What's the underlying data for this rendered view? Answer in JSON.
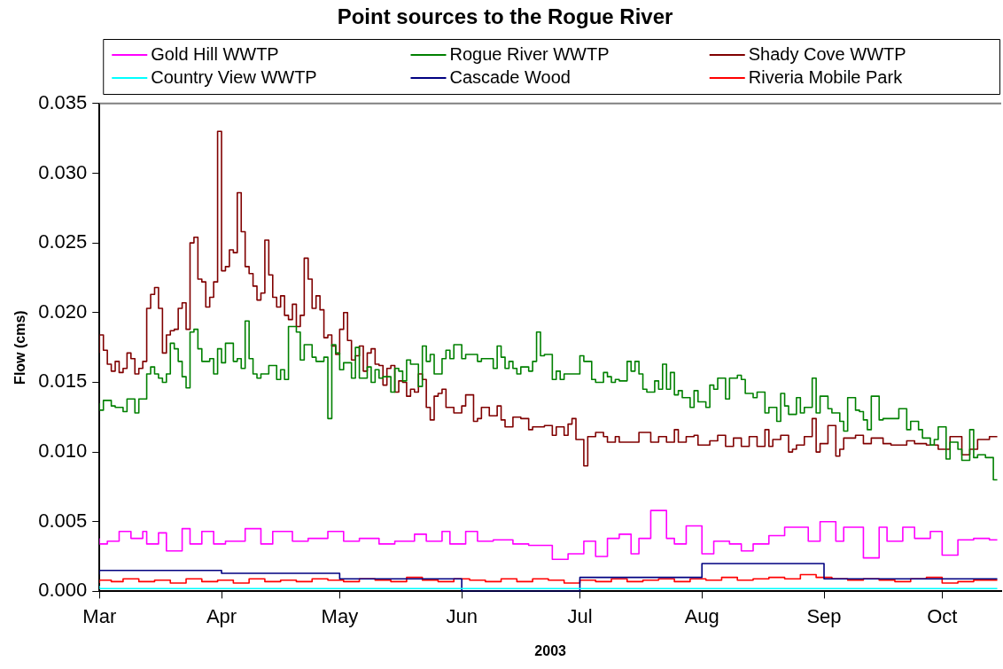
{
  "chart_data": {
    "type": "step",
    "title": "Point sources to the Rogue River",
    "xlabel": "2003",
    "ylabel": "Flow (cms)",
    "xlim": [
      "2003-03-01",
      "2003-10-16"
    ],
    "xticks": [
      {
        "value": "2003-03-01",
        "label": "Mar"
      },
      {
        "value": "2003-04-01",
        "label": "Apr"
      },
      {
        "value": "2003-05-01",
        "label": "May"
      },
      {
        "value": "2003-06-01",
        "label": "Jun"
      },
      {
        "value": "2003-07-01",
        "label": "Jul"
      },
      {
        "value": "2003-08-01",
        "label": "Aug"
      },
      {
        "value": "2003-09-01",
        "label": "Sep"
      },
      {
        "value": "2003-10-01",
        "label": "Oct"
      }
    ],
    "ylim": [
      0,
      0.035
    ],
    "yticks": [
      {
        "value": 0,
        "label": "0.000"
      },
      {
        "value": 0.005,
        "label": "0.005"
      },
      {
        "value": 0.01,
        "label": "0.010"
      },
      {
        "value": 0.015,
        "label": "0.015"
      },
      {
        "value": 0.02,
        "label": "0.020"
      },
      {
        "value": 0.025,
        "label": "0.025"
      },
      {
        "value": 0.03,
        "label": "0.030"
      },
      {
        "value": 0.035,
        "label": "0.035"
      }
    ],
    "grid": false,
    "legend": "top",
    "marker": "none",
    "line_style": "solid",
    "series": [
      {
        "name": "Gold Hill WWTP",
        "color": "#ff00ff",
        "x": [
          "2003-03-01",
          "2003-03-03",
          "2003-03-06",
          "2003-03-09",
          "2003-03-12",
          "2003-03-13",
          "2003-03-16",
          "2003-03-18",
          "2003-03-22",
          "2003-03-24",
          "2003-03-27",
          "2003-03-30",
          "2003-04-02",
          "2003-04-07",
          "2003-04-11",
          "2003-04-14",
          "2003-04-19",
          "2003-04-23",
          "2003-04-28",
          "2003-05-02",
          "2003-05-06",
          "2003-05-11",
          "2003-05-15",
          "2003-05-20",
          "2003-05-23",
          "2003-05-27",
          "2003-05-29",
          "2003-06-02",
          "2003-06-05",
          "2003-06-09",
          "2003-06-14",
          "2003-06-18",
          "2003-06-24",
          "2003-06-28",
          "2003-07-02",
          "2003-07-05",
          "2003-07-08",
          "2003-07-11",
          "2003-07-14",
          "2003-07-16",
          "2003-07-19",
          "2003-07-23",
          "2003-07-25",
          "2003-07-28",
          "2003-08-01",
          "2003-08-04",
          "2003-08-08",
          "2003-08-11",
          "2003-08-14",
          "2003-08-18",
          "2003-08-22",
          "2003-08-28",
          "2003-08-31",
          "2003-09-04",
          "2003-09-06",
          "2003-09-11",
          "2003-09-15",
          "2003-09-17",
          "2003-09-21",
          "2003-09-24",
          "2003-09-28",
          "2003-10-01",
          "2003-10-05",
          "2003-10-09",
          "2003-10-13",
          "2003-10-15"
        ],
        "values": [
          0.0038,
          0.0034,
          0.0036,
          0.0043,
          0.0038,
          0.0043,
          0.0034,
          0.0042,
          0.0029,
          0.0045,
          0.0034,
          0.0043,
          0.0034,
          0.0036,
          0.0045,
          0.0034,
          0.0043,
          0.0036,
          0.0038,
          0.0043,
          0.0036,
          0.0038,
          0.0034,
          0.0036,
          0.0041,
          0.0036,
          0.0043,
          0.0034,
          0.0043,
          0.0036,
          0.0037,
          0.0034,
          0.0033,
          0.0023,
          0.0027,
          0.0036,
          0.0025,
          0.0038,
          0.0041,
          0.0027,
          0.0038,
          0.0058,
          0.0038,
          0.0034,
          0.0047,
          0.0027,
          0.0036,
          0.0034,
          0.0029,
          0.0034,
          0.004,
          0.0046,
          0.0036,
          0.005,
          0.0036,
          0.0046,
          0.0024,
          0.0046,
          0.0036,
          0.0046,
          0.0038,
          0.0043,
          0.0026,
          0.0037,
          0.0038,
          0.0037
        ]
      },
      {
        "name": "Rogue River WWTP",
        "color": "#008000",
        "x": [
          "2003-03-01",
          "2003-03-02",
          "2003-03-04",
          "2003-03-05",
          "2003-03-07",
          "2003-03-08",
          "2003-03-10",
          "2003-03-11",
          "2003-03-13",
          "2003-03-14",
          "2003-03-15",
          "2003-03-16",
          "2003-03-17",
          "2003-03-18",
          "2003-03-19",
          "2003-03-20",
          "2003-03-21",
          "2003-03-22",
          "2003-03-23",
          "2003-03-24",
          "2003-03-25",
          "2003-03-26",
          "2003-03-27",
          "2003-03-29",
          "2003-03-30",
          "2003-03-31",
          "2003-04-01",
          "2003-04-02",
          "2003-04-04",
          "2003-04-05",
          "2003-04-06",
          "2003-04-07",
          "2003-04-08",
          "2003-04-09",
          "2003-04-10",
          "2003-04-11",
          "2003-04-13",
          "2003-04-15",
          "2003-04-16",
          "2003-04-17",
          "2003-04-18",
          "2003-04-20",
          "2003-04-21",
          "2003-04-22",
          "2003-04-24",
          "2003-04-25",
          "2003-04-27",
          "2003-04-28",
          "2003-04-29",
          "2003-04-30",
          "2003-05-01",
          "2003-05-02",
          "2003-05-04",
          "2003-05-05",
          "2003-05-06",
          "2003-05-08",
          "2003-05-09",
          "2003-05-10",
          "2003-05-11",
          "2003-05-12",
          "2003-05-14",
          "2003-05-15",
          "2003-05-16",
          "2003-05-17",
          "2003-05-18",
          "2003-05-19",
          "2003-05-21",
          "2003-05-22",
          "2003-05-23",
          "2003-05-24",
          "2003-05-25",
          "2003-05-27",
          "2003-05-28",
          "2003-05-29",
          "2003-05-30",
          "2003-06-01",
          "2003-06-02",
          "2003-06-05",
          "2003-06-06",
          "2003-06-09",
          "2003-06-10",
          "2003-06-11",
          "2003-06-12",
          "2003-06-13",
          "2003-06-14",
          "2003-06-15",
          "2003-06-16",
          "2003-06-18",
          "2003-06-19",
          "2003-06-20",
          "2003-06-21",
          "2003-06-22",
          "2003-06-24",
          "2003-06-25",
          "2003-06-26",
          "2003-06-27",
          "2003-07-01",
          "2003-07-02",
          "2003-07-04",
          "2003-07-05",
          "2003-07-07",
          "2003-07-08",
          "2003-07-09",
          "2003-07-10",
          "2003-07-11",
          "2003-07-13",
          "2003-07-14",
          "2003-07-15",
          "2003-07-16",
          "2003-07-17",
          "2003-07-18",
          "2003-07-20",
          "2003-07-21",
          "2003-07-22",
          "2003-07-23",
          "2003-07-24",
          "2003-07-25",
          "2003-07-26",
          "2003-07-27",
          "2003-07-29",
          "2003-07-30",
          "2003-07-31",
          "2003-08-02",
          "2003-08-03",
          "2003-08-04",
          "2003-08-05",
          "2003-08-07",
          "2003-08-08",
          "2003-08-10",
          "2003-08-11",
          "2003-08-12",
          "2003-08-14",
          "2003-08-15",
          "2003-08-17",
          "2003-08-18",
          "2003-08-20",
          "2003-08-21",
          "2003-08-22",
          "2003-08-23",
          "2003-08-25",
          "2003-08-26",
          "2003-08-27",
          "2003-08-29",
          "2003-08-30",
          "2003-08-31",
          "2003-09-02",
          "2003-09-03",
          "2003-09-05",
          "2003-09-06",
          "2003-09-07",
          "2003-09-09",
          "2003-09-10",
          "2003-09-11",
          "2003-09-12",
          "2003-09-13",
          "2003-09-15",
          "2003-09-16",
          "2003-09-18",
          "2003-09-20",
          "2003-09-22",
          "2003-09-23",
          "2003-09-25",
          "2003-09-26",
          "2003-09-28",
          "2003-09-29",
          "2003-09-30",
          "2003-10-02",
          "2003-10-03",
          "2003-10-05",
          "2003-10-06",
          "2003-10-08",
          "2003-10-09",
          "2003-10-10",
          "2003-10-12",
          "2003-10-14",
          "2003-10-15"
        ],
        "values": [
          0.0135,
          0.013,
          0.0137,
          0.0133,
          0.0132,
          0.0129,
          0.0138,
          0.0128,
          0.0138,
          0.0156,
          0.0161,
          0.0156,
          0.0153,
          0.015,
          0.0156,
          0.0178,
          0.0174,
          0.0165,
          0.0154,
          0.0146,
          0.0186,
          0.0188,
          0.0174,
          0.0165,
          0.0167,
          0.0156,
          0.0174,
          0.0164,
          0.0178,
          0.0165,
          0.0167,
          0.016,
          0.0194,
          0.0167,
          0.0156,
          0.0153,
          0.0156,
          0.0162,
          0.0152,
          0.0159,
          0.0152,
          0.019,
          0.0186,
          0.0166,
          0.0177,
          0.0168,
          0.0165,
          0.0168,
          0.0124,
          0.0177,
          0.0171,
          0.0159,
          0.0164,
          0.0153,
          0.0175,
          0.0153,
          0.0161,
          0.015,
          0.0159,
          0.0153,
          0.0154,
          0.0143,
          0.016,
          0.0158,
          0.0151,
          0.0166,
          0.0163,
          0.0147,
          0.0176,
          0.0165,
          0.017,
          0.0156,
          0.0167,
          0.0173,
          0.0167,
          0.0177,
          0.0167,
          0.017,
          0.0165,
          0.0167,
          0.016,
          0.0176,
          0.0168,
          0.016,
          0.0165,
          0.016,
          0.0156,
          0.0161,
          0.0158,
          0.0165,
          0.0186,
          0.0169,
          0.017,
          0.0152,
          0.0158,
          0.0152,
          0.0156,
          0.0169,
          0.0165,
          0.0152,
          0.015,
          0.0157,
          0.0154,
          0.015,
          0.0152,
          0.0151,
          0.0165,
          0.0158,
          0.0165,
          0.0156,
          0.0145,
          0.0143,
          0.0151,
          0.0145,
          0.0163,
          0.0145,
          0.0157,
          0.0141,
          0.0144,
          0.0139,
          0.0132,
          0.0144,
          0.0136,
          0.0132,
          0.0148,
          0.0145,
          0.0153,
          0.0138,
          0.0153,
          0.0155,
          0.0152,
          0.0142,
          0.0139,
          0.0143,
          0.0128,
          0.0132,
          0.0122,
          0.0142,
          0.0133,
          0.0127,
          0.0139,
          0.0128,
          0.0132,
          0.0153,
          0.0128,
          0.014,
          0.0131,
          0.0128,
          0.0122,
          0.0115,
          0.0139,
          0.013,
          0.0129,
          0.0123,
          0.0116,
          0.014,
          0.0123,
          0.0124,
          0.0124,
          0.0131,
          0.0116,
          0.0122,
          0.0116,
          0.011,
          0.0105,
          0.0109,
          0.0118,
          0.0095,
          0.0107,
          0.0102,
          0.0094,
          0.0116,
          0.0096,
          0.0098,
          0.0096,
          0.008
        ]
      },
      {
        "name": "Shady Cove WWTP",
        "color": "#800000",
        "x": [
          "2003-03-01",
          "2003-03-02",
          "2003-03-03",
          "2003-03-04",
          "2003-03-05",
          "2003-03-06",
          "2003-03-07",
          "2003-03-08",
          "2003-03-09",
          "2003-03-10",
          "2003-03-11",
          "2003-03-12",
          "2003-03-13",
          "2003-03-14",
          "2003-03-15",
          "2003-03-16",
          "2003-03-17",
          "2003-03-18",
          "2003-03-19",
          "2003-03-20",
          "2003-03-21",
          "2003-03-22",
          "2003-03-23",
          "2003-03-24",
          "2003-03-25",
          "2003-03-26",
          "2003-03-27",
          "2003-03-28",
          "2003-03-29",
          "2003-03-30",
          "2003-03-31",
          "2003-04-01",
          "2003-04-02",
          "2003-04-03",
          "2003-04-04",
          "2003-04-05",
          "2003-04-06",
          "2003-04-07",
          "2003-04-08",
          "2003-04-09",
          "2003-04-10",
          "2003-04-11",
          "2003-04-12",
          "2003-04-13",
          "2003-04-14",
          "2003-04-15",
          "2003-04-16",
          "2003-04-17",
          "2003-04-18",
          "2003-04-19",
          "2003-04-20",
          "2003-04-21",
          "2003-04-22",
          "2003-04-23",
          "2003-04-24",
          "2003-04-25",
          "2003-04-26",
          "2003-04-27",
          "2003-04-28",
          "2003-04-29",
          "2003-04-30",
          "2003-05-01",
          "2003-05-02",
          "2003-05-03",
          "2003-05-04",
          "2003-05-05",
          "2003-05-06",
          "2003-05-07",
          "2003-05-08",
          "2003-05-09",
          "2003-05-10",
          "2003-05-11",
          "2003-05-12",
          "2003-05-13",
          "2003-05-14",
          "2003-05-15",
          "2003-05-16",
          "2003-05-17",
          "2003-05-18",
          "2003-05-19",
          "2003-05-20",
          "2003-05-21",
          "2003-05-22",
          "2003-05-23",
          "2003-05-24",
          "2003-05-25",
          "2003-05-26",
          "2003-05-27",
          "2003-05-28",
          "2003-05-30",
          "2003-06-01",
          "2003-06-02",
          "2003-06-04",
          "2003-06-05",
          "2003-06-06",
          "2003-06-08",
          "2003-06-10",
          "2003-06-11",
          "2003-06-12",
          "2003-06-14",
          "2003-06-16",
          "2003-06-18",
          "2003-06-19",
          "2003-06-22",
          "2003-06-24",
          "2003-06-25",
          "2003-06-27",
          "2003-06-28",
          "2003-06-29",
          "2003-06-30",
          "2003-07-02",
          "2003-07-03",
          "2003-07-05",
          "2003-07-07",
          "2003-07-08",
          "2003-07-10",
          "2003-07-11",
          "2003-07-14",
          "2003-07-16",
          "2003-07-19",
          "2003-07-21",
          "2003-07-23",
          "2003-07-25",
          "2003-07-26",
          "2003-07-28",
          "2003-07-30",
          "2003-07-31",
          "2003-08-03",
          "2003-08-05",
          "2003-08-07",
          "2003-08-09",
          "2003-08-11",
          "2003-08-13",
          "2003-08-15",
          "2003-08-17",
          "2003-08-18",
          "2003-08-19",
          "2003-08-21",
          "2003-08-23",
          "2003-08-24",
          "2003-08-25",
          "2003-08-27",
          "2003-08-29",
          "2003-08-30",
          "2003-08-31",
          "2003-09-02",
          "2003-09-04",
          "2003-09-05",
          "2003-09-06",
          "2003-09-09",
          "2003-09-11",
          "2003-09-13",
          "2003-09-16",
          "2003-09-18",
          "2003-09-22",
          "2003-09-24",
          "2003-09-27",
          "2003-09-30",
          "2003-10-03",
          "2003-10-06",
          "2003-10-08",
          "2003-10-10",
          "2003-10-13",
          "2003-10-15"
        ],
        "values": [
          0.0171,
          0.0184,
          0.0173,
          0.0163,
          0.0158,
          0.0165,
          0.0157,
          0.016,
          0.0171,
          0.0167,
          0.0156,
          0.016,
          0.0165,
          0.0203,
          0.0213,
          0.0218,
          0.0203,
          0.0171,
          0.0184,
          0.0187,
          0.0188,
          0.0203,
          0.0207,
          0.0188,
          0.025,
          0.0254,
          0.0224,
          0.0222,
          0.0204,
          0.0211,
          0.0222,
          0.033,
          0.023,
          0.0233,
          0.0245,
          0.0243,
          0.0286,
          0.0258,
          0.0233,
          0.0228,
          0.0219,
          0.0209,
          0.0214,
          0.0252,
          0.0227,
          0.0211,
          0.0204,
          0.0212,
          0.0198,
          0.0195,
          0.0206,
          0.019,
          0.0198,
          0.0239,
          0.0224,
          0.0203,
          0.0212,
          0.0202,
          0.0182,
          0.0184,
          0.0176,
          0.017,
          0.0188,
          0.02,
          0.018,
          0.0166,
          0.0169,
          0.0176,
          0.0158,
          0.0171,
          0.0174,
          0.0163,
          0.0162,
          0.0148,
          0.016,
          0.0162,
          0.0143,
          0.0151,
          0.015,
          0.014,
          0.0145,
          0.0143,
          0.0156,
          0.0152,
          0.0132,
          0.0123,
          0.014,
          0.0142,
          0.0145,
          0.0132,
          0.0128,
          0.0133,
          0.0141,
          0.0122,
          0.0124,
          0.0132,
          0.0126,
          0.0133,
          0.0123,
          0.0118,
          0.0125,
          0.0124,
          0.0116,
          0.0118,
          0.0119,
          0.0112,
          0.0118,
          0.0112,
          0.012,
          0.0124,
          0.0109,
          0.009,
          0.0111,
          0.0114,
          0.0111,
          0.0107,
          0.0111,
          0.0107,
          0.0107,
          0.0114,
          0.0107,
          0.0111,
          0.0107,
          0.0116,
          0.0107,
          0.0111,
          0.0112,
          0.0105,
          0.0108,
          0.0112,
          0.0104,
          0.011,
          0.0104,
          0.0111,
          0.0104,
          0.0116,
          0.0104,
          0.0109,
          0.0112,
          0.01,
          0.0102,
          0.0105,
          0.0111,
          0.0124,
          0.01,
          0.0106,
          0.0119,
          0.0097,
          0.0102,
          0.011,
          0.0112,
          0.0106,
          0.011,
          0.0106,
          0.0105,
          0.0108,
          0.0106,
          0.0105,
          0.0102,
          0.0111,
          0.0098,
          0.0102,
          0.0109,
          0.0111
        ]
      },
      {
        "name": "Country View WWTP",
        "color": "#00ffff",
        "x": [
          "2003-03-01",
          "2003-05-01",
          "2003-10-15"
        ],
        "values": [
          0.0004,
          0.0002,
          0.0002
        ]
      },
      {
        "name": "Cascade Wood",
        "color": "#000080",
        "x": [
          "2003-03-01",
          "2003-04-01",
          "2003-05-01",
          "2003-06-01",
          "2003-07-01",
          "2003-08-01",
          "2003-09-01",
          "2003-10-01",
          "2003-10-15"
        ],
        "values": [
          0.0012,
          0.0015,
          0.0013,
          0.0009,
          0,
          0.001,
          0.002,
          0.0009,
          0.0009
        ]
      },
      {
        "name": "Riveria Mobile Park",
        "color": "#ff0000",
        "x": [
          "2003-03-01",
          "2003-03-04",
          "2003-03-07",
          "2003-03-11",
          "2003-03-15",
          "2003-03-19",
          "2003-03-23",
          "2003-03-27",
          "2003-03-31",
          "2003-04-04",
          "2003-04-08",
          "2003-04-12",
          "2003-04-16",
          "2003-04-20",
          "2003-04-24",
          "2003-04-28",
          "2003-05-02",
          "2003-05-06",
          "2003-05-10",
          "2003-05-14",
          "2003-05-18",
          "2003-05-22",
          "2003-05-26",
          "2003-05-30",
          "2003-06-03",
          "2003-06-07",
          "2003-06-11",
          "2003-06-15",
          "2003-06-19",
          "2003-06-23",
          "2003-06-27",
          "2003-07-01",
          "2003-07-05",
          "2003-07-09",
          "2003-07-13",
          "2003-07-17",
          "2003-07-21",
          "2003-07-25",
          "2003-07-29",
          "2003-08-02",
          "2003-08-06",
          "2003-08-10",
          "2003-08-14",
          "2003-08-18",
          "2003-08-22",
          "2003-08-26",
          "2003-08-30",
          "2003-09-03",
          "2003-09-07",
          "2003-09-11",
          "2003-09-15",
          "2003-09-19",
          "2003-09-23",
          "2003-09-27",
          "2003-10-01",
          "2003-10-05",
          "2003-10-09",
          "2003-10-13",
          "2003-10-15"
        ],
        "values": [
          0.0006,
          0.0008,
          0.0007,
          0.0009,
          0.0007,
          0.0008,
          0.0006,
          0.0009,
          0.0007,
          0.0008,
          0.0006,
          0.0009,
          0.0007,
          0.0008,
          0.0007,
          0.0009,
          0.0008,
          0.0007,
          0.0009,
          0.0008,
          0.0007,
          0.001,
          0.0008,
          0.0007,
          0.0009,
          0.0008,
          0.0007,
          0.0009,
          0.0007,
          0.0009,
          0.0008,
          0.0006,
          0.0008,
          0.0007,
          0.0009,
          0.0007,
          0.0008,
          0.0009,
          0.0007,
          0.0009,
          0.0008,
          0.001,
          0.0008,
          0.0009,
          0.001,
          0.0009,
          0.0012,
          0.001,
          0.0009,
          0.0008,
          0.0009,
          0.0008,
          0.0007,
          0.0009,
          0.001,
          0.0006,
          0.0007,
          0.0008,
          0.0008
        ]
      }
    ]
  }
}
